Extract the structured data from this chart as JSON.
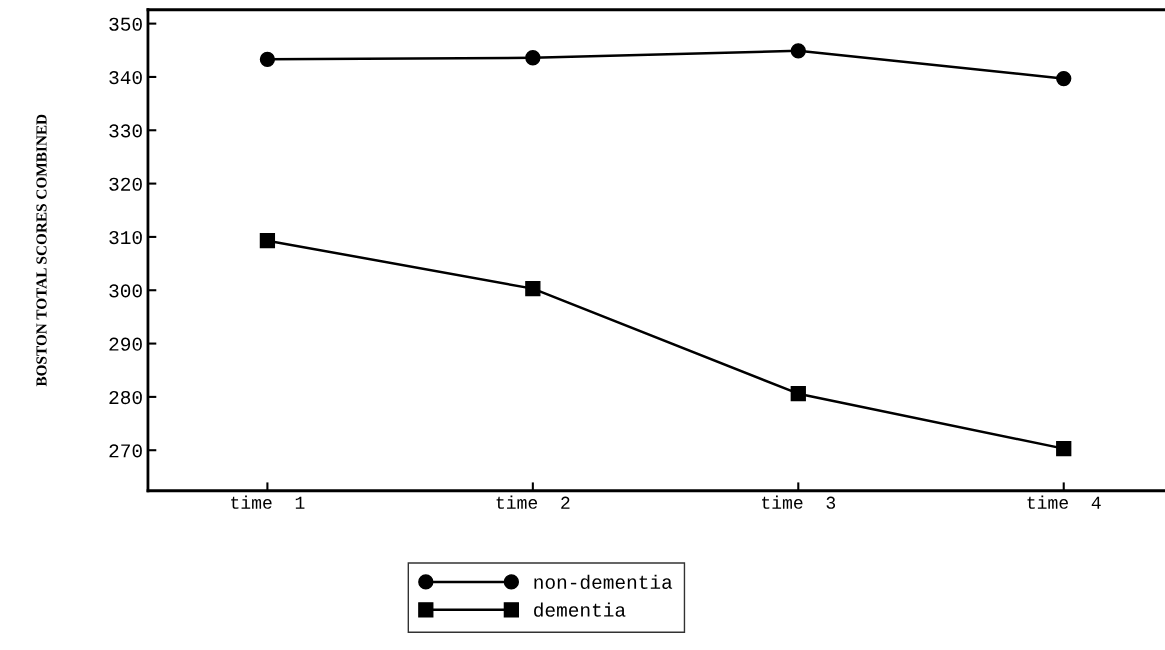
{
  "chart_data": {
    "type": "line",
    "ylabel": "BOSTON TOTAL SCORES COMBINED",
    "categories": [
      "time  1",
      "time  2",
      "time  3",
      "time  4"
    ],
    "series": [
      {
        "name": "non-dementia",
        "color": "#000000",
        "marker": "circle",
        "values": [
          343.3,
          343.6,
          344.9,
          339.7
        ]
      },
      {
        "name": "dementia",
        "color": "#000000",
        "marker": "square",
        "values": [
          309.3,
          300.3,
          280.6,
          270.3
        ]
      }
    ],
    "ylim": [
      262.4,
      352.6
    ],
    "yticks": [
      270,
      280,
      290,
      300,
      310,
      320,
      330,
      340,
      350
    ],
    "grid": false,
    "legend": "bottom",
    "line_style": "solid"
  }
}
